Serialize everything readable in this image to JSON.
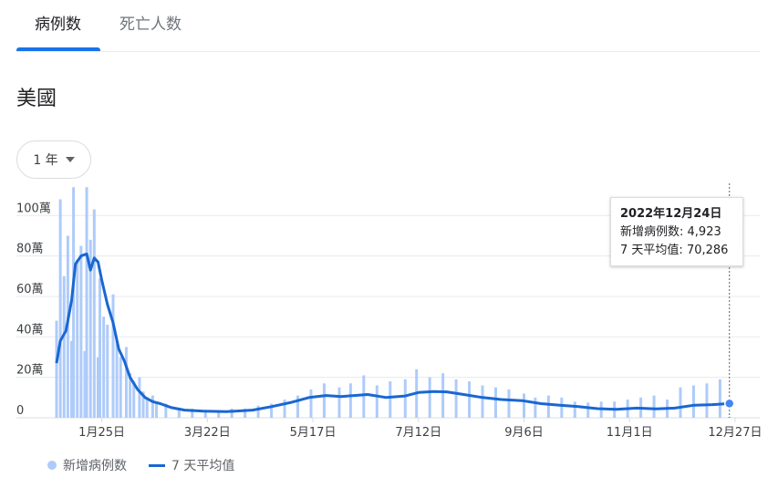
{
  "tabs": [
    {
      "label": "病例数",
      "active": true
    },
    {
      "label": "死亡人数",
      "active": false
    }
  ],
  "region": "美國",
  "range_selector": {
    "value": "1 年"
  },
  "tooltip": {
    "date": "2022年12月24日",
    "new_cases_label": "新增病例数:",
    "new_cases_value": "4,923",
    "avg_label": "7 天平均值:",
    "avg_value": "70,286"
  },
  "legend": {
    "bars": "新增病例数",
    "line": "7 天平均值"
  },
  "colors": {
    "bars": "#aecbfa",
    "line": "#1967d2",
    "accent": "#1a73e8",
    "grid": "#e8eaed"
  },
  "chart_data": {
    "type": "bar",
    "x_range": [
      "2022-01-01",
      "2022-12-28"
    ],
    "ylim": [
      0,
      1150000
    ],
    "y_ticks": [
      {
        "value": 0,
        "label": "0"
      },
      {
        "value": 200000,
        "label": "20萬"
      },
      {
        "value": 400000,
        "label": "40萬"
      },
      {
        "value": 600000,
        "label": "60萬"
      },
      {
        "value": 800000,
        "label": "80萬"
      },
      {
        "value": 1000000,
        "label": "100萬"
      }
    ],
    "x_ticks": [
      {
        "date": "2022-01-25",
        "label": "1月25日"
      },
      {
        "date": "2022-03-22",
        "label": "3月22日"
      },
      {
        "date": "2022-05-17",
        "label": "5月17日"
      },
      {
        "date": "2022-07-12",
        "label": "7月12日"
      },
      {
        "date": "2022-09-06",
        "label": "9月6日"
      },
      {
        "date": "2022-11-01",
        "label": "11月1日"
      },
      {
        "date": "2022-12-27",
        "label": "12月27日"
      }
    ],
    "grid": true,
    "series": [
      {
        "name": "新增病例数",
        "type": "bar",
        "points": [
          [
            "2022-01-01",
            480000
          ],
          [
            "2022-01-03",
            1080000
          ],
          [
            "2022-01-05",
            700000
          ],
          [
            "2022-01-07",
            900000
          ],
          [
            "2022-01-09",
            380000
          ],
          [
            "2022-01-10",
            1140000
          ],
          [
            "2022-01-12",
            780000
          ],
          [
            "2022-01-14",
            850000
          ],
          [
            "2022-01-16",
            330000
          ],
          [
            "2022-01-17",
            1140000
          ],
          [
            "2022-01-19",
            880000
          ],
          [
            "2022-01-21",
            1030000
          ],
          [
            "2022-01-23",
            300000
          ],
          [
            "2022-01-24",
            690000
          ],
          [
            "2022-01-26",
            500000
          ],
          [
            "2022-01-28",
            460000
          ],
          [
            "2022-01-31",
            610000
          ],
          [
            "2022-02-02",
            380000
          ],
          [
            "2022-02-04",
            300000
          ],
          [
            "2022-02-07",
            350000
          ],
          [
            "2022-02-09",
            220000
          ],
          [
            "2022-02-11",
            180000
          ],
          [
            "2022-02-14",
            200000
          ],
          [
            "2022-02-16",
            130000
          ],
          [
            "2022-02-18",
            100000
          ],
          [
            "2022-02-21",
            110000
          ],
          [
            "2022-02-23",
            80000
          ],
          [
            "2022-02-28",
            70000
          ],
          [
            "2022-03-07",
            50000
          ],
          [
            "2022-03-14",
            45000
          ],
          [
            "2022-03-21",
            40000
          ],
          [
            "2022-03-28",
            35000
          ],
          [
            "2022-04-04",
            45000
          ],
          [
            "2022-04-11",
            45000
          ],
          [
            "2022-04-18",
            60000
          ],
          [
            "2022-04-25",
            70000
          ],
          [
            "2022-05-02",
            90000
          ],
          [
            "2022-05-09",
            110000
          ],
          [
            "2022-05-16",
            140000
          ],
          [
            "2022-05-23",
            170000
          ],
          [
            "2022-05-31",
            150000
          ],
          [
            "2022-06-06",
            170000
          ],
          [
            "2022-06-13",
            210000
          ],
          [
            "2022-06-20",
            160000
          ],
          [
            "2022-06-27",
            180000
          ],
          [
            "2022-07-05",
            190000
          ],
          [
            "2022-07-11",
            240000
          ],
          [
            "2022-07-18",
            200000
          ],
          [
            "2022-07-25",
            220000
          ],
          [
            "2022-08-01",
            190000
          ],
          [
            "2022-08-08",
            180000
          ],
          [
            "2022-08-15",
            160000
          ],
          [
            "2022-08-22",
            150000
          ],
          [
            "2022-08-29",
            140000
          ],
          [
            "2022-09-06",
            120000
          ],
          [
            "2022-09-12",
            100000
          ],
          [
            "2022-09-19",
            110000
          ],
          [
            "2022-09-26",
            100000
          ],
          [
            "2022-10-03",
            80000
          ],
          [
            "2022-10-10",
            75000
          ],
          [
            "2022-10-17",
            80000
          ],
          [
            "2022-10-24",
            80000
          ],
          [
            "2022-10-31",
            90000
          ],
          [
            "2022-11-07",
            100000
          ],
          [
            "2022-11-14",
            110000
          ],
          [
            "2022-11-21",
            90000
          ],
          [
            "2022-11-28",
            150000
          ],
          [
            "2022-12-05",
            160000
          ],
          [
            "2022-12-12",
            170000
          ],
          [
            "2022-12-19",
            190000
          ],
          [
            "2022-12-24",
            4923
          ]
        ]
      },
      {
        "name": "7 天平均值",
        "type": "line",
        "points": [
          [
            "2022-01-01",
            270000
          ],
          [
            "2022-01-03",
            380000
          ],
          [
            "2022-01-06",
            430000
          ],
          [
            "2022-01-09",
            580000
          ],
          [
            "2022-01-11",
            760000
          ],
          [
            "2022-01-14",
            800000
          ],
          [
            "2022-01-17",
            810000
          ],
          [
            "2022-01-19",
            730000
          ],
          [
            "2022-01-21",
            790000
          ],
          [
            "2022-01-23",
            770000
          ],
          [
            "2022-01-25",
            680000
          ],
          [
            "2022-01-28",
            560000
          ],
          [
            "2022-01-31",
            470000
          ],
          [
            "2022-02-03",
            340000
          ],
          [
            "2022-02-06",
            280000
          ],
          [
            "2022-02-09",
            200000
          ],
          [
            "2022-02-13",
            140000
          ],
          [
            "2022-02-17",
            100000
          ],
          [
            "2022-02-21",
            80000
          ],
          [
            "2022-02-25",
            70000
          ],
          [
            "2022-03-03",
            50000
          ],
          [
            "2022-03-10",
            38000
          ],
          [
            "2022-03-20",
            33000
          ],
          [
            "2022-04-01",
            30000
          ],
          [
            "2022-04-15",
            38000
          ],
          [
            "2022-04-25",
            55000
          ],
          [
            "2022-05-05",
            75000
          ],
          [
            "2022-05-15",
            100000
          ],
          [
            "2022-05-24",
            110000
          ],
          [
            "2022-06-01",
            105000
          ],
          [
            "2022-06-08",
            110000
          ],
          [
            "2022-06-15",
            115000
          ],
          [
            "2022-06-25",
            100000
          ],
          [
            "2022-07-05",
            108000
          ],
          [
            "2022-07-12",
            125000
          ],
          [
            "2022-07-20",
            130000
          ],
          [
            "2022-07-27",
            128000
          ],
          [
            "2022-08-05",
            115000
          ],
          [
            "2022-08-15",
            100000
          ],
          [
            "2022-08-25",
            90000
          ],
          [
            "2022-09-05",
            85000
          ],
          [
            "2022-09-15",
            70000
          ],
          [
            "2022-09-25",
            62000
          ],
          [
            "2022-10-05",
            55000
          ],
          [
            "2022-10-15",
            45000
          ],
          [
            "2022-10-25",
            42000
          ],
          [
            "2022-11-05",
            48000
          ],
          [
            "2022-11-15",
            44000
          ],
          [
            "2022-11-25",
            48000
          ],
          [
            "2022-12-05",
            62000
          ],
          [
            "2022-12-15",
            65000
          ],
          [
            "2022-12-24",
            70286
          ]
        ]
      }
    ],
    "highlight": {
      "date": "2022-12-24",
      "value": 70286
    }
  }
}
